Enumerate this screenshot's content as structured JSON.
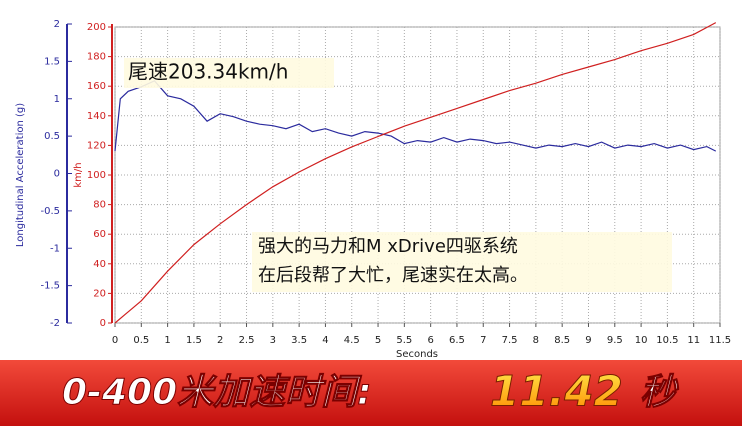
{
  "chart_data": {
    "type": "line",
    "y_label": "Longitudinal Acceleration (g)",
    "y2_label": "km/h",
    "x_label": "Seconds",
    "xlim": [
      0,
      11.5
    ],
    "xticks": [
      0,
      0.5,
      1,
      1.5,
      2,
      2.5,
      3,
      3.5,
      4,
      4.5,
      5,
      5.5,
      6,
      6.5,
      7,
      7.5,
      8,
      8.5,
      9,
      9.5,
      10,
      10.5,
      11,
      11.5
    ],
    "ylim": [
      -2,
      2
    ],
    "yticks": [
      -2,
      -1.5,
      -1,
      -0.5,
      0,
      0.5,
      1,
      1.5,
      2
    ],
    "y2lim": [
      0,
      200
    ],
    "y2ticks": [
      0,
      20,
      40,
      60,
      80,
      100,
      120,
      140,
      160,
      180,
      200
    ],
    "grid": true,
    "series": [
      {
        "color": "#2b2b9e",
        "axis": "y",
        "x": [
          0,
          0.1,
          0.25,
          0.5,
          0.75,
          1,
          1.25,
          1.5,
          1.75,
          2,
          2.25,
          2.5,
          2.75,
          3,
          3.25,
          3.5,
          3.75,
          4,
          4.25,
          4.5,
          4.75,
          5,
          5.25,
          5.5,
          5.75,
          6,
          6.25,
          6.5,
          6.75,
          7,
          7.25,
          7.5,
          7.75,
          8,
          8.25,
          8.5,
          8.75,
          9,
          9.25,
          9.5,
          9.75,
          10,
          10.25,
          10.5,
          10.75,
          11,
          11.25,
          11.42
        ],
        "values": [
          0.3,
          1.0,
          1.1,
          1.16,
          1.24,
          1.04,
          1.0,
          0.9,
          0.7,
          0.8,
          0.76,
          0.7,
          0.66,
          0.64,
          0.6,
          0.66,
          0.56,
          0.6,
          0.54,
          0.5,
          0.56,
          0.54,
          0.5,
          0.4,
          0.44,
          0.42,
          0.48,
          0.42,
          0.46,
          0.44,
          0.4,
          0.42,
          0.38,
          0.34,
          0.38,
          0.36,
          0.4,
          0.36,
          0.42,
          0.34,
          0.38,
          0.36,
          0.4,
          0.34,
          0.38,
          0.32,
          0.36,
          0.3
        ]
      },
      {
        "color": "#d02020",
        "axis": "y2",
        "x": [
          0,
          0.5,
          1,
          1.5,
          2,
          2.5,
          3,
          3.5,
          4,
          4.5,
          5,
          5.5,
          6,
          6.5,
          7,
          7.5,
          8,
          8.5,
          9,
          9.5,
          10,
          10.5,
          11,
          11.42
        ],
        "values": [
          0,
          15,
          35,
          53,
          67,
          80,
          92,
          102,
          111,
          119,
          126,
          133,
          139,
          145,
          151,
          157,
          162,
          168,
          173,
          178,
          184,
          189,
          195,
          203
        ]
      }
    ],
    "annotations": [
      "尾速203.34km/h",
      "强大的马力和M xDrive四驱系统",
      "在后段帮了大忙，尾速实在太高。"
    ]
  },
  "banner": {
    "label": "0-400米加速时间:",
    "value": "11.42",
    "unit": "秒"
  }
}
